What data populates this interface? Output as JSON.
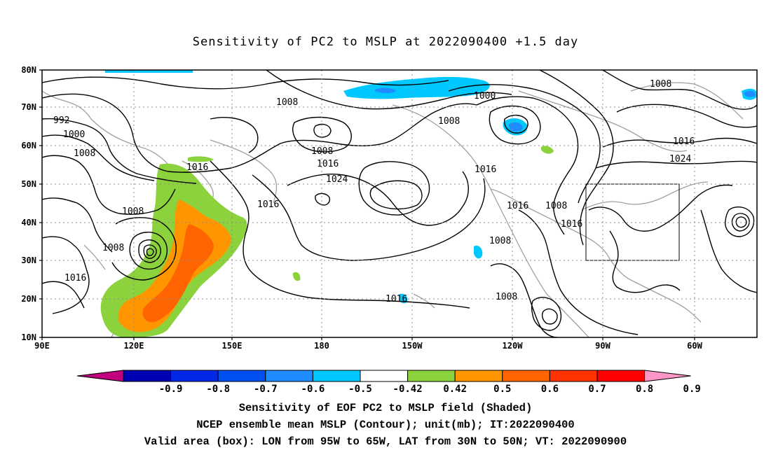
{
  "title": "Sensitivity of PC2 to MSLP at 2022090400 +1.5 day",
  "lat_labels": [
    "10N",
    "20N",
    "30N",
    "40N",
    "50N",
    "60N",
    "70N",
    "80N"
  ],
  "lon_labels": [
    "90E",
    "120E",
    "150E",
    "180",
    "150W",
    "120W",
    "90W",
    "60W"
  ],
  "isobar_labels": [
    "992",
    "1000",
    "1008",
    "1008",
    "1016",
    "1016",
    "1024",
    "1016",
    "1008",
    "1008",
    "1016",
    "1000",
    "1008",
    "1016",
    "1016",
    "1008",
    "1016",
    "1008",
    "1008",
    "1008",
    "1016",
    "1016",
    "1024"
  ],
  "colorbar": {
    "labels": [
      "-0.9",
      "-0.8",
      "-0.7",
      "-0.6",
      "-0.5",
      "-0.42",
      "0.42",
      "0.5",
      "0.6",
      "0.7",
      "0.8",
      "0.9"
    ],
    "colors": [
      "#c0007c",
      "#0000b4",
      "#0028e6",
      "#0050f0",
      "#1e8cff",
      "#00c8ff",
      "#ffffff",
      "#8cd23c",
      "#ff9600",
      "#ff6400",
      "#ff3200",
      "#ff0000",
      "#ff96c8"
    ]
  },
  "footer": {
    "line1": "Sensitivity of EOF PC2 to MSLP field (Shaded)",
    "line2": "NCEP ensemble mean MSLP (Contour); unit(mb); IT:2022090400",
    "line3": "Valid area (box): LON from 95W to 65W, LAT from 30N to 50N; VT: 2022090900"
  }
}
